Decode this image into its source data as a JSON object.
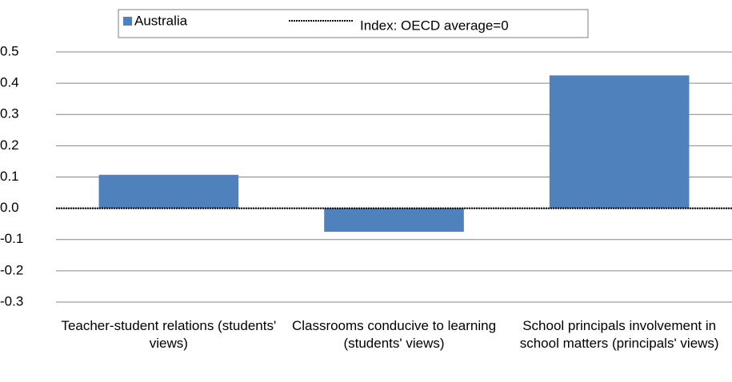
{
  "chart_data": {
    "type": "bar",
    "categories": [
      "Teacher-student relations (students' views)",
      "Classrooms conducive to learning (students' views)",
      "School principals involvement in school matters (principals' views)"
    ],
    "series": [
      {
        "name": "Australia",
        "color": "#4f81bd",
        "values": [
          0.107,
          -0.075,
          0.425
        ]
      }
    ],
    "reference_line": {
      "name": "Index: OECD average=0",
      "value": 0
    },
    "ylim": [
      -0.3,
      0.5
    ],
    "yticks": [
      -0.3,
      -0.2,
      -0.1,
      {
        "value": 0,
        "label": "0.0"
      },
      0.1,
      0.2,
      0.3,
      0.4,
      0.5
    ],
    "grid": true
  }
}
